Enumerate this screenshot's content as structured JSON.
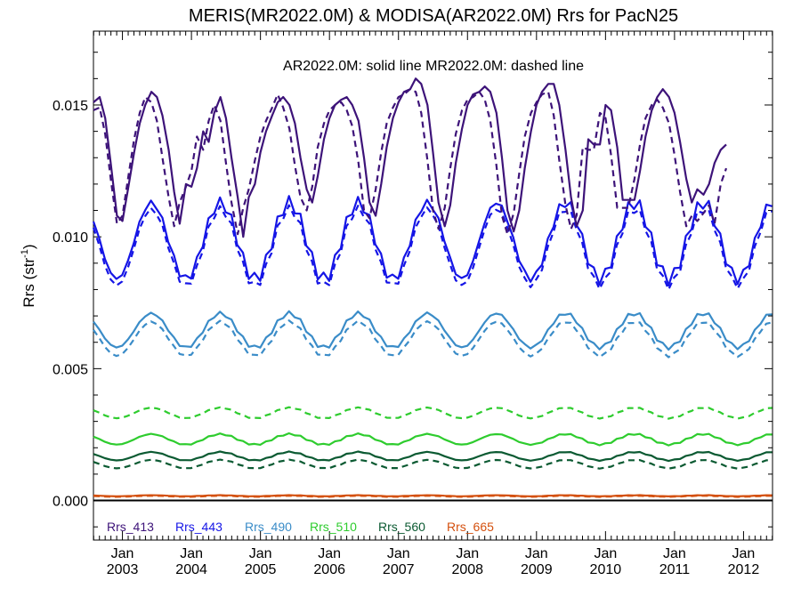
{
  "chart_data": {
    "type": "line",
    "title": "MERIS(MR2022.0M) & MODISA(AR2022.0M)  Rrs for PacN25",
    "annotation": "AR2022.0M: solid line   MR2022.0M: dashed line",
    "ylabel_main": "Rrs (str",
    "ylabel_sup": "-1",
    "ylabel_close": ")",
    "xlim": [
      2002.58,
      2012.42
    ],
    "ylim": [
      -0.0015,
      0.0178
    ],
    "yticks": [
      {
        "value": 0.0,
        "label": "0.000"
      },
      {
        "value": 0.005,
        "label": "0.005"
      },
      {
        "value": 0.01,
        "label": "0.010"
      },
      {
        "value": 0.015,
        "label": "0.015"
      }
    ],
    "xticks": [
      {
        "value": 2003.0,
        "month": "Jan",
        "year": "2003"
      },
      {
        "value": 2004.0,
        "month": "Jan",
        "year": "2004"
      },
      {
        "value": 2005.0,
        "month": "Jan",
        "year": "2005"
      },
      {
        "value": 2006.0,
        "month": "Jan",
        "year": "2006"
      },
      {
        "value": 2007.0,
        "month": "Jan",
        "year": "2007"
      },
      {
        "value": 2008.0,
        "month": "Jan",
        "year": "2008"
      },
      {
        "value": 2009.0,
        "month": "Jan",
        "year": "2009"
      },
      {
        "value": 2010.0,
        "month": "Jan",
        "year": "2010"
      },
      {
        "value": 2011.0,
        "month": "Jan",
        "year": "2011"
      },
      {
        "value": 2012.0,
        "month": "Jan",
        "year": "2012"
      }
    ],
    "zero_line": 0.0,
    "series": [
      {
        "name": "Rrs_413",
        "color": "#3d1379",
        "solid": [
          [
            2002.58,
            0.0151
          ],
          [
            2002.67,
            0.0153
          ],
          [
            2002.75,
            0.0145
          ],
          [
            2002.83,
            0.0128
          ],
          [
            2002.92,
            0.0108
          ],
          [
            2003.0,
            0.0106
          ],
          [
            2003.08,
            0.0118
          ],
          [
            2003.17,
            0.0132
          ],
          [
            2003.25,
            0.0143
          ],
          [
            2003.33,
            0.015
          ],
          [
            2003.42,
            0.0155
          ],
          [
            2003.5,
            0.0153
          ],
          [
            2003.58,
            0.0146
          ],
          [
            2003.67,
            0.0133
          ],
          [
            2003.75,
            0.0117
          ],
          [
            2003.83,
            0.0105
          ],
          [
            2003.92,
            0.012
          ],
          [
            2004.0,
            0.0119
          ],
          [
            2004.08,
            0.0126
          ],
          [
            2004.17,
            0.014
          ],
          [
            2004.25,
            0.0136
          ],
          [
            2004.33,
            0.0147
          ],
          [
            2004.42,
            0.0153
          ],
          [
            2004.5,
            0.0145
          ],
          [
            2004.58,
            0.013
          ],
          [
            2004.67,
            0.0115
          ],
          [
            2004.75,
            0.01
          ],
          [
            2004.83,
            0.0115
          ],
          [
            2004.92,
            0.012
          ],
          [
            2005.0,
            0.0132
          ],
          [
            2005.08,
            0.014
          ],
          [
            2005.17,
            0.0146
          ],
          [
            2005.25,
            0.0151
          ],
          [
            2005.33,
            0.0153
          ],
          [
            2005.42,
            0.015
          ],
          [
            2005.5,
            0.0143
          ],
          [
            2005.58,
            0.013
          ],
          [
            2005.67,
            0.0118
          ],
          [
            2005.75,
            0.0113
          ],
          [
            2005.83,
            0.0123
          ],
          [
            2005.92,
            0.0137
          ],
          [
            2006.0,
            0.0145
          ],
          [
            2006.08,
            0.015
          ],
          [
            2006.17,
            0.0152
          ],
          [
            2006.25,
            0.0153
          ],
          [
            2006.33,
            0.015
          ],
          [
            2006.42,
            0.0144
          ],
          [
            2006.5,
            0.013
          ],
          [
            2006.58,
            0.0113
          ],
          [
            2006.67,
            0.0108
          ],
          [
            2006.75,
            0.012
          ],
          [
            2006.83,
            0.0134
          ],
          [
            2006.92,
            0.0145
          ],
          [
            2007.0,
            0.0151
          ],
          [
            2007.08,
            0.0155
          ],
          [
            2007.17,
            0.0156
          ],
          [
            2007.25,
            0.016
          ],
          [
            2007.33,
            0.0158
          ],
          [
            2007.42,
            0.015
          ],
          [
            2007.5,
            0.0132
          ],
          [
            2007.58,
            0.0113
          ],
          [
            2007.67,
            0.0104
          ],
          [
            2007.75,
            0.0112
          ],
          [
            2007.83,
            0.0128
          ],
          [
            2007.92,
            0.0141
          ],
          [
            2008.0,
            0.015
          ],
          [
            2008.08,
            0.0154
          ],
          [
            2008.17,
            0.0155
          ],
          [
            2008.25,
            0.0157
          ],
          [
            2008.33,
            0.0155
          ],
          [
            2008.42,
            0.0147
          ],
          [
            2008.5,
            0.013
          ],
          [
            2008.58,
            0.011
          ],
          [
            2008.67,
            0.0102
          ],
          [
            2008.75,
            0.011
          ],
          [
            2008.83,
            0.0126
          ],
          [
            2008.92,
            0.014
          ],
          [
            2009.0,
            0.015
          ],
          [
            2009.08,
            0.0155
          ],
          [
            2009.17,
            0.0158
          ],
          [
            2009.25,
            0.0158
          ],
          [
            2009.33,
            0.015
          ],
          [
            2009.42,
            0.0133
          ],
          [
            2009.5,
            0.0115
          ],
          [
            2009.58,
            0.0104
          ],
          [
            2009.67,
            0.011
          ],
          [
            2009.75,
            0.0137
          ],
          [
            2009.83,
            0.0135
          ],
          [
            2009.92,
            0.0135
          ],
          [
            2010.0,
            0.015
          ],
          [
            2010.08,
            0.0148
          ],
          [
            2010.17,
            0.0134
          ],
          [
            2010.25,
            0.0114
          ],
          [
            2010.33,
            0.0114
          ],
          [
            2010.42,
            0.0114
          ],
          [
            2010.5,
            0.0125
          ],
          [
            2010.58,
            0.0138
          ],
          [
            2010.67,
            0.0148
          ],
          [
            2010.75,
            0.0153
          ],
          [
            2010.83,
            0.0156
          ],
          [
            2010.92,
            0.0153
          ],
          [
            2011.0,
            0.0147
          ],
          [
            2011.08,
            0.0136
          ],
          [
            2011.17,
            0.0122
          ],
          [
            2011.25,
            0.0113
          ],
          [
            2011.33,
            0.0118
          ],
          [
            2011.42,
            0.0116
          ],
          [
            2011.5,
            0.012
          ],
          [
            2011.58,
            0.0128
          ],
          [
            2011.67,
            0.0133
          ],
          [
            2011.75,
            0.0135
          ]
        ]
      },
      {
        "name": "Rrs_413_dashed",
        "color": "#3d1379",
        "dashed": [
          [
            2002.58,
            0.0148
          ],
          [
            2002.67,
            0.0149
          ],
          [
            2002.75,
            0.0139
          ],
          [
            2002.83,
            0.0122
          ],
          [
            2002.92,
            0.0105
          ],
          [
            2003.0,
            0.0108
          ],
          [
            2003.08,
            0.0122
          ],
          [
            2003.17,
            0.0137
          ],
          [
            2003.25,
            0.0147
          ],
          [
            2003.33,
            0.0153
          ],
          [
            2003.42,
            0.0151
          ],
          [
            2003.5,
            0.0144
          ],
          [
            2003.58,
            0.013
          ],
          [
            2003.67,
            0.0115
          ],
          [
            2003.75,
            0.0104
          ],
          [
            2003.83,
            0.0113
          ],
          [
            2003.92,
            0.0119
          ],
          [
            2004.0,
            0.0125
          ],
          [
            2004.08,
            0.0138
          ],
          [
            2004.17,
            0.0133
          ],
          [
            2004.25,
            0.0144
          ],
          [
            2004.33,
            0.015
          ],
          [
            2004.42,
            0.0144
          ],
          [
            2004.5,
            0.0128
          ],
          [
            2004.58,
            0.0113
          ],
          [
            2004.67,
            0.0101
          ],
          [
            2004.75,
            0.0111
          ],
          [
            2004.83,
            0.0118
          ],
          [
            2004.92,
            0.0129
          ],
          [
            2005.0,
            0.0138
          ],
          [
            2005.08,
            0.0144
          ],
          [
            2005.17,
            0.0149
          ],
          [
            2005.25,
            0.0154
          ],
          [
            2005.33,
            0.0149
          ],
          [
            2005.42,
            0.0141
          ],
          [
            2005.5,
            0.0127
          ],
          [
            2005.58,
            0.0115
          ],
          [
            2005.67,
            0.011
          ],
          [
            2005.75,
            0.0119
          ],
          [
            2005.83,
            0.0134
          ],
          [
            2005.92,
            0.0143
          ],
          [
            2006.0,
            0.0148
          ],
          [
            2006.08,
            0.015
          ],
          [
            2006.17,
            0.0151
          ],
          [
            2006.25,
            0.0148
          ],
          [
            2006.33,
            0.0142
          ],
          [
            2006.42,
            0.0128
          ],
          [
            2006.5,
            0.011
          ],
          [
            2006.58,
            0.0107
          ],
          [
            2006.67,
            0.0118
          ],
          [
            2006.75,
            0.0132
          ],
          [
            2006.83,
            0.0143
          ],
          [
            2006.92,
            0.0149
          ],
          [
            2007.0,
            0.0153
          ],
          [
            2007.08,
            0.0154
          ],
          [
            2007.17,
            0.0156
          ],
          [
            2007.25,
            0.0155
          ],
          [
            2007.33,
            0.0147
          ],
          [
            2007.42,
            0.0129
          ],
          [
            2007.5,
            0.011
          ],
          [
            2007.58,
            0.0103
          ],
          [
            2007.67,
            0.0111
          ],
          [
            2007.75,
            0.0126
          ],
          [
            2007.83,
            0.0139
          ],
          [
            2007.92,
            0.0148
          ],
          [
            2008.0,
            0.0152
          ],
          [
            2008.08,
            0.0153
          ],
          [
            2008.17,
            0.0155
          ],
          [
            2008.25,
            0.0152
          ],
          [
            2008.33,
            0.0144
          ],
          [
            2008.42,
            0.0127
          ],
          [
            2008.5,
            0.0108
          ],
          [
            2008.58,
            0.0101
          ],
          [
            2008.67,
            0.0109
          ],
          [
            2008.75,
            0.0124
          ],
          [
            2008.83,
            0.0138
          ],
          [
            2008.92,
            0.0147
          ],
          [
            2009.0,
            0.0151
          ],
          [
            2009.08,
            0.0154
          ],
          [
            2009.17,
            0.0155
          ],
          [
            2009.25,
            0.0146
          ],
          [
            2009.33,
            0.0129
          ],
          [
            2009.42,
            0.0112
          ],
          [
            2009.5,
            0.0103
          ],
          [
            2009.58,
            0.0108
          ],
          [
            2009.67,
            0.0134
          ],
          [
            2009.75,
            0.0133
          ],
          [
            2009.83,
            0.0133
          ],
          [
            2009.92,
            0.0147
          ],
          [
            2010.0,
            0.0145
          ],
          [
            2010.08,
            0.0131
          ],
          [
            2010.17,
            0.0111
          ],
          [
            2010.25,
            0.0111
          ],
          [
            2010.33,
            0.0111
          ],
          [
            2010.42,
            0.0122
          ],
          [
            2010.5,
            0.0135
          ],
          [
            2010.58,
            0.0145
          ],
          [
            2010.67,
            0.015
          ],
          [
            2010.75,
            0.0152
          ],
          [
            2010.83,
            0.0149
          ],
          [
            2010.92,
            0.0143
          ],
          [
            2011.0,
            0.0131
          ],
          [
            2011.08,
            0.0117
          ],
          [
            2011.17,
            0.0104
          ],
          [
            2011.25,
            0.0108
          ],
          [
            2011.33,
            0.0106
          ],
          [
            2011.42,
            0.0109
          ],
          [
            2011.5,
            0.0112
          ],
          [
            2011.58,
            0.0105
          ],
          [
            2011.67,
            0.012
          ],
          [
            2011.75,
            0.0126
          ]
        ]
      }
    ],
    "legend": [
      {
        "label": "Rrs_413",
        "color": "#3d1379"
      },
      {
        "label": "Rrs_443",
        "color": "#1515e6"
      },
      {
        "label": "Rrs_490",
        "color": "#3a8cc8"
      },
      {
        "label": "Rrs_510",
        "color": "#2ecc2e"
      },
      {
        "label": "Rrs_560",
        "color": "#0b5a32"
      },
      {
        "label": "Rrs_665",
        "color": "#d4500e"
      }
    ],
    "seasonal_series": [
      {
        "name": "Rrs_443",
        "color": "#1515e6",
        "solid_mean": 0.00985,
        "solid_amp": 0.00145,
        "dashed_offset": -0.00025,
        "phase_peak": 0.42,
        "style_noise": 0.00025
      },
      {
        "name": "Rrs_490",
        "color": "#3a8cc8",
        "solid_mean": 0.00645,
        "solid_amp": 0.00065,
        "dashed_offset": -0.00032,
        "phase_peak": 0.42,
        "style_noise": 8e-05
      },
      {
        "name": "Rrs_510",
        "color": "#2ecc2e",
        "solid_mean": 0.00232,
        "solid_amp": 0.0002,
        "dashed_offset": 0.001,
        "phase_peak": 0.42,
        "style_noise": 3e-05
      },
      {
        "name": "Rrs_560",
        "color": "#0b5a32",
        "solid_mean": 0.00168,
        "solid_amp": 0.00016,
        "dashed_offset": -0.0003,
        "phase_peak": 0.42,
        "style_noise": 2e-05
      },
      {
        "name": "Rrs_665",
        "color": "#d4500e",
        "solid_mean": 0.00018,
        "solid_amp": 2e-05,
        "dashed_offset": -2e-05,
        "phase_peak": 0.42,
        "style_noise": 5e-06
      }
    ]
  }
}
